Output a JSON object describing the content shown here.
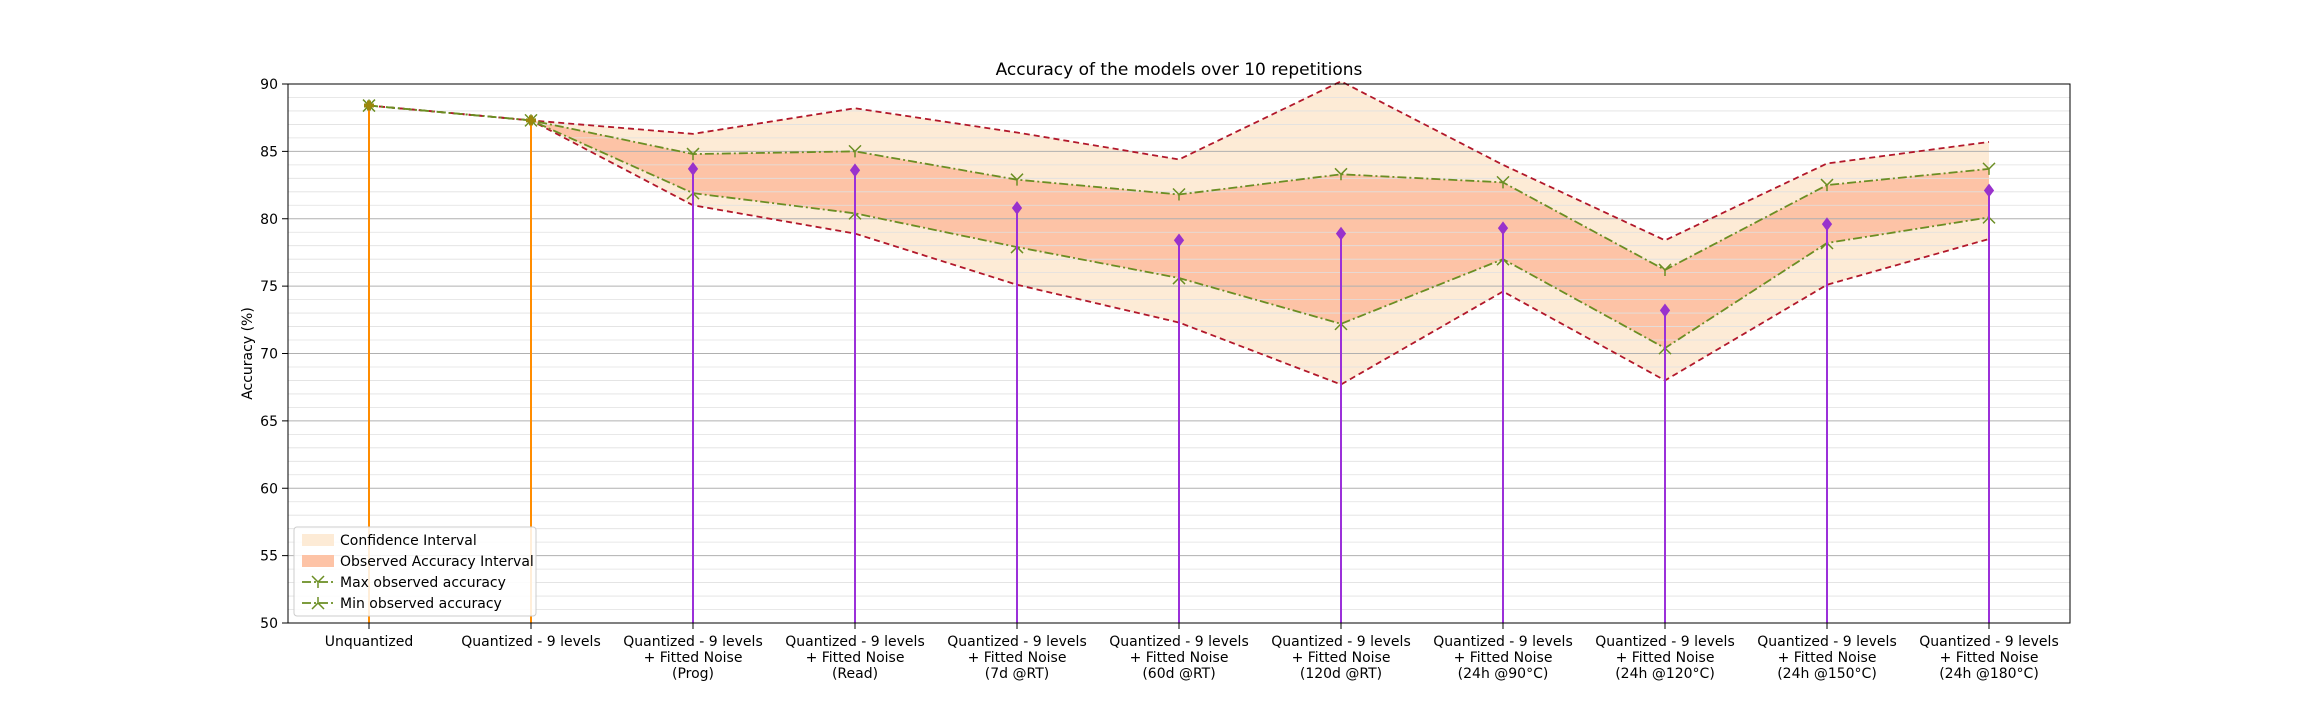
{
  "chart_data": {
    "type": "line",
    "title": "Accuracy of the models over 10 repetitions",
    "xlabel": "",
    "ylabel": "Accuracy (%)",
    "ylim": [
      50,
      90
    ],
    "yticks": [
      50,
      55,
      60,
      65,
      70,
      75,
      80,
      85,
      90
    ],
    "grid": "horizontal major and minor",
    "legend_position": "lower-left",
    "categories": [
      "Unquantized",
      "Quantized - 9 levels",
      "Quantized - 9 levels\n+ Fitted Noise\n(Prog)",
      "Quantized - 9 levels\n+ Fitted Noise\n(Read)",
      "Quantized - 9 levels\n+ Fitted Noise\n(7d @RT)",
      "Quantized - 9 levels\n+ Fitted Noise\n(60d @RT)",
      "Quantized - 9 levels\n+ Fitted Noise\n(120d @RT)",
      "Quantized - 9 levels\n+ Fitted Noise\n(24h @90°C)",
      "Quantized - 9 levels\n+ Fitted Noise\n(24h @120°C)",
      "Quantized - 9 levels\n+ Fitted Noise\n(24h @150°C)",
      "Quantized - 9 levels\n+ Fitted Noise\n(24h @180°C)"
    ],
    "mean_accuracy": [
      88.4,
      87.3,
      83.7,
      83.6,
      80.8,
      78.4,
      78.9,
      79.3,
      73.2,
      79.6,
      82.1
    ],
    "max_accuracy": [
      88.4,
      87.3,
      84.8,
      85.0,
      82.9,
      81.8,
      83.3,
      82.7,
      76.2,
      82.5,
      83.7
    ],
    "min_accuracy": [
      88.4,
      87.3,
      81.9,
      80.4,
      77.9,
      75.6,
      72.2,
      77.0,
      70.4,
      78.2,
      80.1
    ],
    "ci_upper": [
      88.4,
      87.3,
      86.3,
      88.2,
      86.4,
      84.4,
      90.2,
      84.0,
      78.4,
      84.1,
      85.7
    ],
    "ci_lower": [
      88.4,
      87.3,
      81.0,
      78.9,
      75.1,
      72.3,
      67.7,
      74.6,
      68.0,
      75.1,
      78.5
    ],
    "legend": [
      "Confidence Interval",
      "Observed Accuracy Interval",
      "Max observed accuracy",
      "Min observed accuracy"
    ],
    "colors": {
      "confidence_fill": "#fdebd6",
      "observed_fill": "#fdc3a6",
      "ci_line": "#b2182b",
      "minmax_line": "#6b8e23",
      "stem_baseline": "#ff8c00",
      "marker_baseline": "#9b870c",
      "stem_noise": "#9b30d9",
      "marker_noise": "#9932cc"
    }
  }
}
